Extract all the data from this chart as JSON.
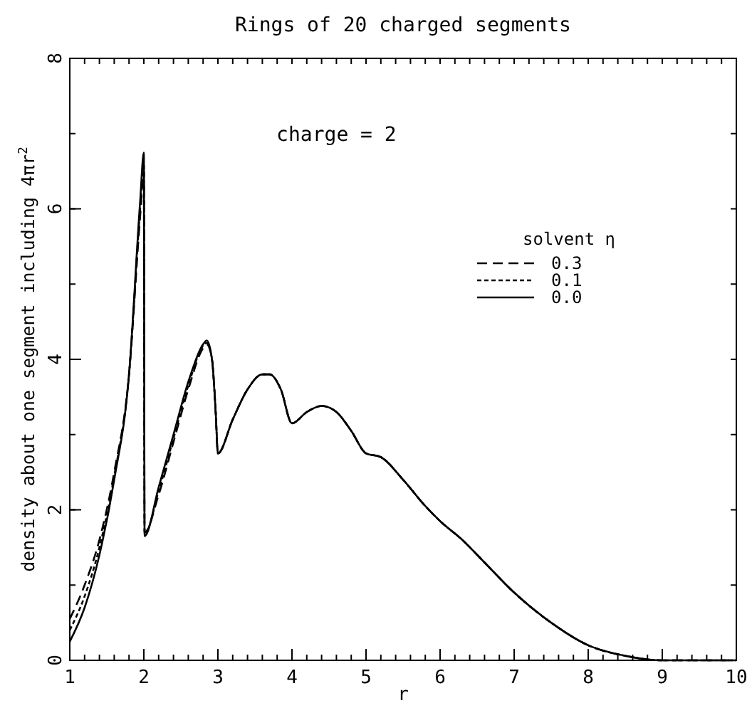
{
  "chart_data": {
    "type": "line",
    "title": "Rings of 20 charged segments",
    "xlabel": "r",
    "ylabel": "density about one segment including 4πr$^{2}$",
    "legend_title": "solvent η",
    "annotations": [
      "charge = 2"
    ],
    "xlim": [
      1,
      10
    ],
    "ylim": [
      0,
      8
    ],
    "xticks": [
      1,
      2,
      3,
      4,
      5,
      6,
      7,
      8,
      9,
      10
    ],
    "yticks": [
      0,
      2,
      4,
      6,
      8
    ],
    "grid": false,
    "legend": "top right",
    "series": [
      {
        "name": "0.3",
        "color": "#000000",
        "line_style": "dashed",
        "x": [
          1,
          1.2,
          1.4,
          1.6,
          1.8,
          1.95,
          2.0,
          2.01,
          2.2,
          2.4,
          2.6,
          2.8,
          2.85,
          2.92,
          2.97,
          3.0,
          3.2,
          3.4,
          3.6,
          3.7,
          3.85,
          4.0,
          4.2,
          4.4,
          4.6,
          4.8,
          5.0,
          5.2,
          5.5,
          5.8,
          6.0,
          6.3,
          6.6,
          7,
          7.5,
          8,
          8.5,
          9,
          10
        ],
        "values": [
          0.55,
          1.0,
          1.6,
          2.5,
          3.8,
          5.9,
          6.5,
          1.7,
          2.2,
          2.9,
          3.6,
          4.15,
          4.2,
          4.0,
          3.3,
          2.75,
          3.2,
          3.6,
          3.8,
          3.8,
          3.6,
          3.15,
          3.3,
          3.38,
          3.3,
          3.05,
          2.75,
          2.7,
          2.4,
          2.05,
          1.85,
          1.6,
          1.3,
          0.9,
          0.5,
          0.2,
          0.06,
          0,
          0
        ]
      },
      {
        "name": "0.1",
        "color": "#000000",
        "line_style": "dotted",
        "x": [
          1,
          1.2,
          1.4,
          1.6,
          1.8,
          1.95,
          2.0,
          2.01,
          2.2,
          2.4,
          2.6,
          2.8,
          2.85,
          2.92,
          2.97,
          3.0,
          3.2,
          3.4,
          3.6,
          3.7,
          3.85,
          4.0,
          4.2,
          4.4,
          4.6,
          4.8,
          5.0,
          5.2,
          5.5,
          5.8,
          6.0,
          6.3,
          6.6,
          7,
          7.5,
          8,
          8.5,
          9,
          10
        ],
        "values": [
          0.4,
          0.85,
          1.5,
          2.45,
          3.8,
          6.0,
          6.6,
          1.68,
          2.25,
          2.95,
          3.65,
          4.18,
          4.22,
          4.0,
          3.3,
          2.75,
          3.2,
          3.6,
          3.8,
          3.8,
          3.6,
          3.15,
          3.3,
          3.38,
          3.3,
          3.05,
          2.75,
          2.7,
          2.4,
          2.05,
          1.85,
          1.6,
          1.3,
          0.9,
          0.5,
          0.2,
          0.06,
          0,
          0
        ]
      },
      {
        "name": "0.0",
        "color": "#000000",
        "line_style": "solid",
        "x": [
          1,
          1.2,
          1.4,
          1.6,
          1.8,
          1.95,
          2.0,
          2.01,
          2.2,
          2.4,
          2.6,
          2.8,
          2.85,
          2.92,
          2.97,
          3.0,
          3.2,
          3.4,
          3.6,
          3.7,
          3.85,
          4.0,
          4.2,
          4.4,
          4.6,
          4.8,
          5.0,
          5.2,
          5.5,
          5.8,
          6.0,
          6.3,
          6.6,
          7,
          7.5,
          8,
          8.5,
          9,
          10
        ],
        "values": [
          0.25,
          0.7,
          1.4,
          2.4,
          3.8,
          6.1,
          6.75,
          1.65,
          2.3,
          3.0,
          3.7,
          4.2,
          4.25,
          4.0,
          3.3,
          2.75,
          3.2,
          3.6,
          3.8,
          3.8,
          3.6,
          3.15,
          3.3,
          3.38,
          3.3,
          3.05,
          2.75,
          2.7,
          2.4,
          2.05,
          1.85,
          1.6,
          1.3,
          0.9,
          0.5,
          0.2,
          0.06,
          0,
          0
        ]
      }
    ]
  }
}
